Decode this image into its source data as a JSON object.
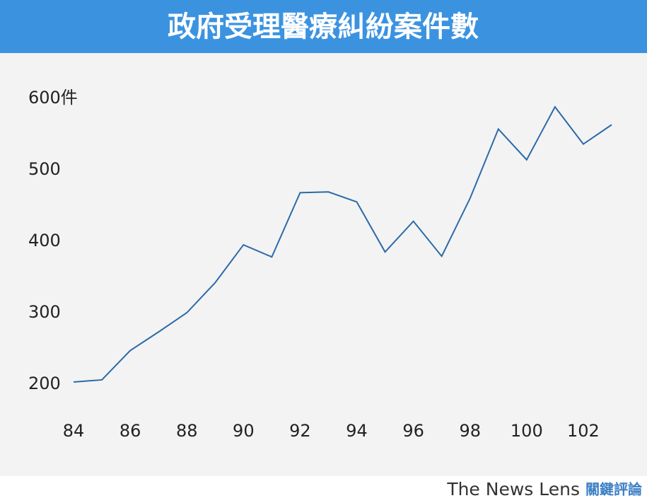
{
  "chart_data": {
    "type": "line",
    "title": "政府受理醫療糾紛案件數",
    "categories": [
      "84",
      null,
      "86",
      null,
      "88",
      null,
      "90",
      null,
      "92",
      null,
      "94",
      null,
      "96",
      null,
      "98",
      null,
      "100",
      null,
      "102",
      null
    ],
    "series": [
      {
        "name": null,
        "color": "#2b6aa8",
        "values": [
          203,
          206,
          247,
          273,
          300,
          342,
          395,
          378,
          468,
          469,
          455,
          385,
          428,
          379,
          460,
          557,
          514,
          588,
          536,
          563
        ]
      }
    ],
    "ylim": [
      200,
      600
    ],
    "yticks": [
      200,
      300,
      400,
      500,
      {
        "value": 600,
        "label": "600件"
      }
    ],
    "grid": false,
    "footer": {
      "brand": "The News Lens",
      "brand_zh": "關鍵評論"
    }
  }
}
